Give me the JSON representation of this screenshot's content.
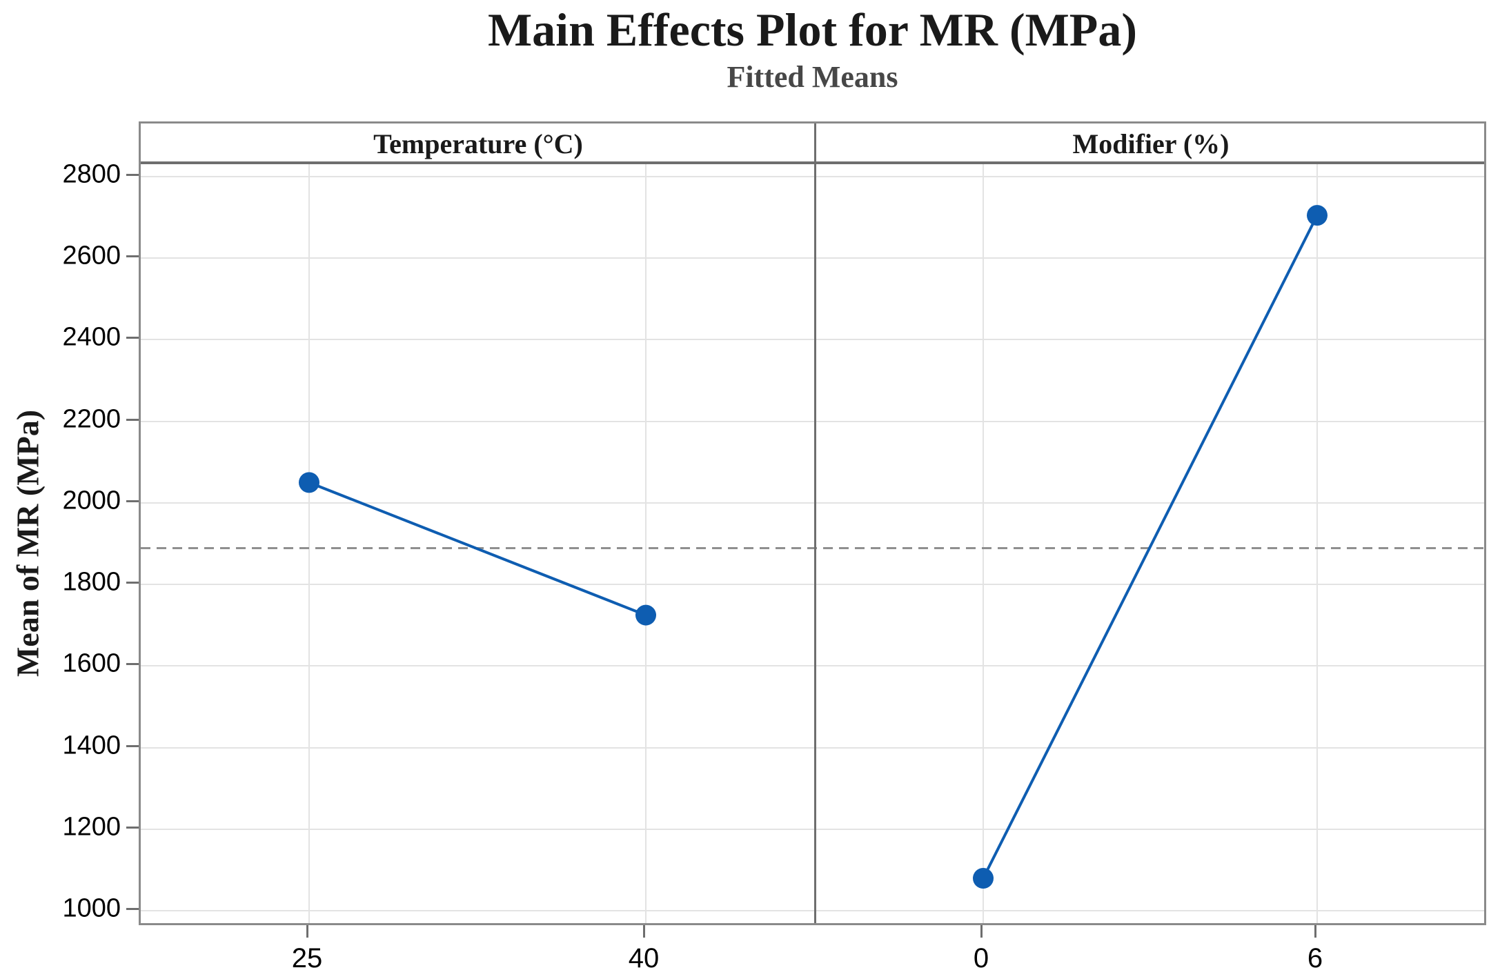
{
  "chart_data": {
    "type": "line",
    "title": "Main Effects Plot for MR (MPa)",
    "subtitle": "Fitted Means",
    "ylabel": "Mean of MR (MPa)",
    "ylim": [
      970,
      2832
    ],
    "yticks": [
      1000,
      1200,
      1400,
      1600,
      1800,
      2000,
      2200,
      2400,
      2600,
      2800
    ],
    "grid": true,
    "legend": false,
    "mean_line_value": 1890,
    "mean_line_style": "dashed",
    "panels": [
      {
        "label": "Temperature (°C)",
        "categories": [
          "25",
          "40"
        ],
        "values": [
          2050,
          1725
        ]
      },
      {
        "label": "Modifier (%)",
        "categories": [
          "0",
          "6"
        ],
        "values": [
          1080,
          2705
        ]
      }
    ],
    "colors": {
      "series": "#0e5db1",
      "mean_line": "#8f8f8f",
      "gridline": "#e3e3e3",
      "panel_border": "#8a8a8a",
      "header_separator": "#6e6e6e",
      "tick": "#6e6e6e",
      "title_text": "#1a1a1a",
      "subtitle_text": "#474747"
    }
  }
}
